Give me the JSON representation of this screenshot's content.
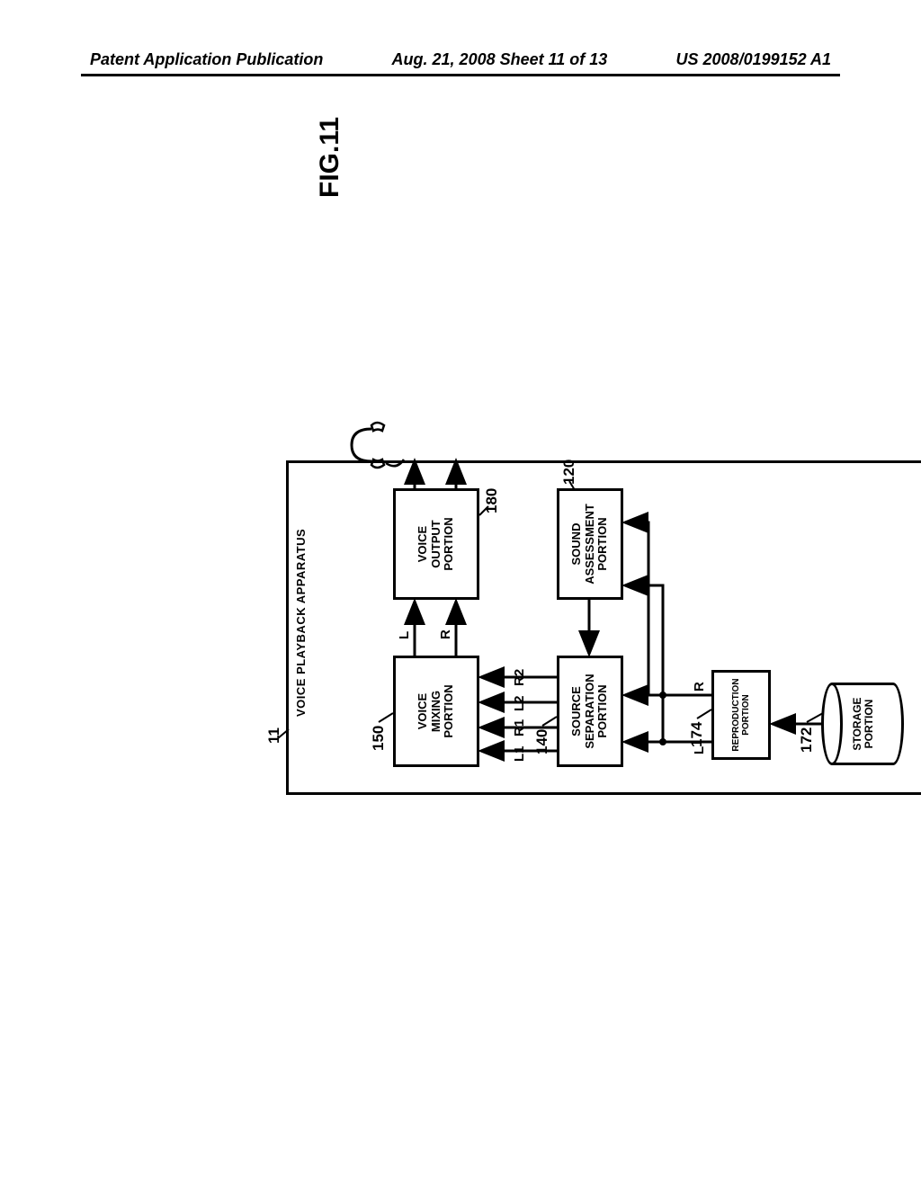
{
  "header": {
    "left": "Patent Application Publication",
    "center": "Aug. 21, 2008  Sheet 11 of 13",
    "right": "US 2008/0199152 A1"
  },
  "figure": {
    "title": "FIG.11",
    "ref_apparatus": "11",
    "apparatus_label": "VOICE PLAYBACK APPARATUS"
  },
  "blocks": {
    "storage": {
      "ref": "172",
      "label": "STORAGE\nPORTION"
    },
    "reproduction": {
      "ref": "174",
      "label": "REPRODUCTION\nPORTION"
    },
    "separation": {
      "ref": "140",
      "label": "SOURCE\nSEPARATION\nPORTION"
    },
    "assessment": {
      "ref": "120",
      "label": "SOUND\nASSESSMENT\nPORTION"
    },
    "mixing": {
      "ref": "150",
      "label": "VOICE\nMIXING\nPORTION"
    },
    "output": {
      "ref": "180",
      "label": "VOICE\nOUTPUT\nPORTION"
    }
  },
  "signals": {
    "L": "L",
    "R": "R",
    "L1": "L1",
    "R1": "R1",
    "L2": "L2",
    "R2": "R2"
  },
  "style": {
    "stroke": "#000000",
    "stroke_width": 3,
    "font_family": "Arial",
    "bg": "#ffffff"
  }
}
